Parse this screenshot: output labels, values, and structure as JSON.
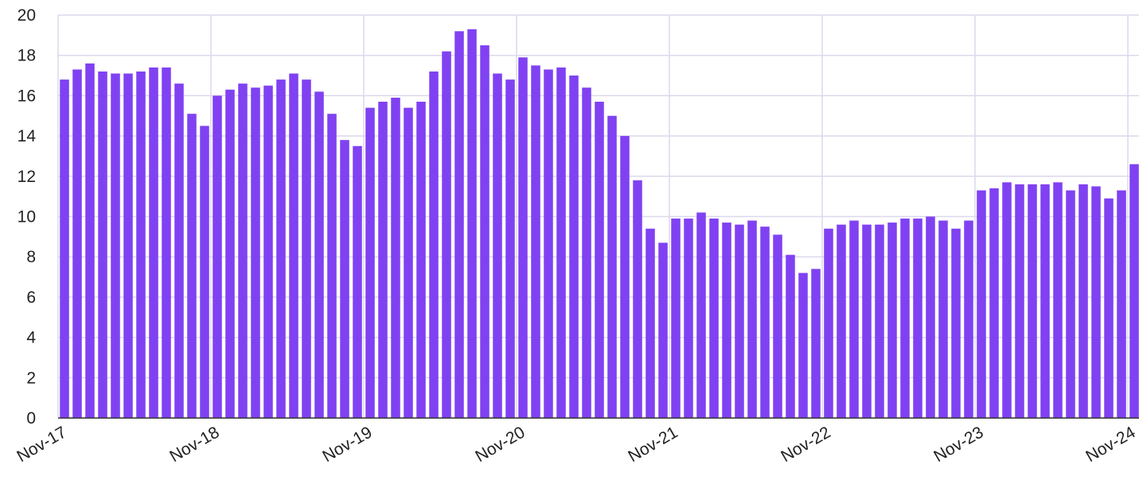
{
  "chart_data": {
    "type": "bar",
    "color": "#8041f2",
    "categories": [
      "Nov-17",
      null,
      null,
      null,
      null,
      null,
      null,
      null,
      null,
      null,
      null,
      null,
      "Nov-18",
      null,
      null,
      null,
      null,
      null,
      null,
      null,
      null,
      null,
      null,
      null,
      "Nov-19",
      null,
      null,
      null,
      null,
      null,
      null,
      null,
      null,
      null,
      null,
      null,
      "Nov-20",
      null,
      null,
      null,
      null,
      null,
      null,
      null,
      null,
      null,
      null,
      null,
      "Nov-21",
      null,
      null,
      null,
      null,
      null,
      null,
      null,
      null,
      null,
      null,
      null,
      "Nov-22",
      null,
      null,
      null,
      null,
      null,
      null,
      null,
      null,
      null,
      null,
      null,
      "Nov-23",
      null,
      null,
      null,
      null,
      null,
      null,
      null,
      null,
      null,
      null,
      null,
      "Nov-24"
    ],
    "values": [
      16.8,
      17.3,
      17.6,
      17.2,
      17.1,
      17.1,
      17.2,
      17.4,
      17.4,
      16.6,
      15.1,
      14.5,
      16.0,
      16.3,
      16.6,
      16.4,
      16.5,
      16.8,
      17.1,
      16.8,
      16.2,
      15.1,
      13.8,
      13.5,
      15.4,
      15.7,
      15.9,
      15.4,
      15.7,
      17.2,
      18.2,
      19.2,
      19.3,
      18.5,
      17.1,
      16.8,
      17.9,
      17.5,
      17.3,
      17.4,
      17.0,
      16.4,
      15.7,
      15.0,
      14.0,
      11.8,
      9.4,
      8.7,
      9.9,
      9.9,
      10.2,
      9.9,
      9.7,
      9.6,
      9.8,
      9.5,
      9.1,
      8.1,
      7.2,
      7.4,
      9.4,
      9.6,
      9.8,
      9.6,
      9.6,
      9.7,
      9.9,
      9.9,
      10.0,
      9.8,
      9.4,
      9.8,
      11.3,
      11.4,
      11.7,
      11.6,
      11.6,
      11.6,
      11.7,
      11.3,
      11.6,
      11.5,
      10.9,
      11.3,
      12.6
    ],
    "ylim": [
      0,
      20
    ],
    "yticks": [
      0,
      2,
      4,
      6,
      8,
      10,
      12,
      14,
      16,
      18,
      20
    ],
    "grid": true
  }
}
